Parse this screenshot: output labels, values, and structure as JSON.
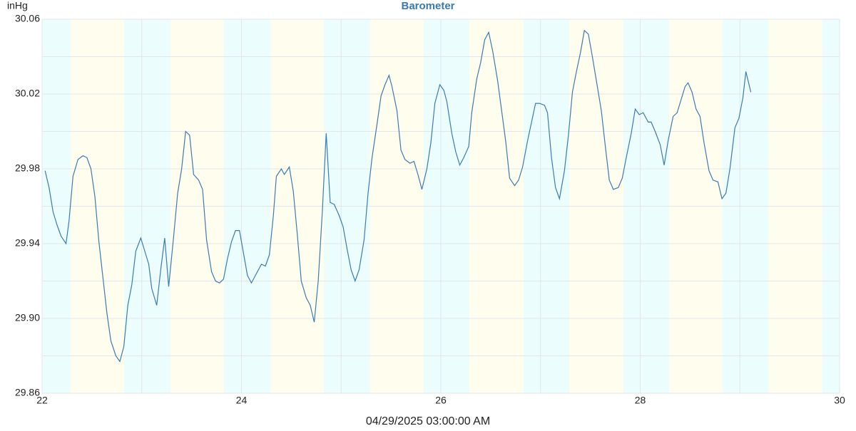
{
  "chart_data": {
    "type": "line",
    "title": "Barometer",
    "y_unit": "inHg",
    "cursor_time": "04/29/2025 03:00:00 AM",
    "xlim": [
      22,
      30
    ],
    "xticks": [
      22,
      24,
      26,
      28,
      30
    ],
    "x_gridlines": [
      23,
      25,
      27,
      29
    ],
    "ylim": [
      29.86,
      30.06
    ],
    "yticks": [
      29.86,
      {
        "value": 29.9,
        "label": "29.90"
      },
      29.94,
      29.98,
      30.02,
      30.06
    ],
    "y_gridlines": [
      29.88,
      29.92,
      29.96,
      30.0,
      30.04
    ],
    "grid": true,
    "bands": [
      {
        "x0": 22,
        "x1": 22.286,
        "color": "#ecfdfd"
      },
      {
        "x0": 22.286,
        "x1": 22.823,
        "color": "#fefdee"
      },
      {
        "x0": 22.823,
        "x1": 23.288,
        "color": "#ecfdfd"
      },
      {
        "x0": 23.288,
        "x1": 23.825,
        "color": "#fefdee"
      },
      {
        "x0": 23.825,
        "x1": 24.29,
        "color": "#ecfdfd"
      },
      {
        "x0": 24.29,
        "x1": 24.826,
        "color": "#fefdee"
      },
      {
        "x0": 24.826,
        "x1": 25.29,
        "color": "#ecfdfd"
      },
      {
        "x0": 25.29,
        "x1": 25.828,
        "color": "#fefdee"
      },
      {
        "x0": 25.828,
        "x1": 26.286,
        "color": "#ecfdfd"
      },
      {
        "x0": 26.286,
        "x1": 26.83,
        "color": "#fefdee"
      },
      {
        "x0": 26.83,
        "x1": 27.288,
        "color": "#ecfdfd"
      },
      {
        "x0": 27.288,
        "x1": 27.832,
        "color": "#fefdee"
      },
      {
        "x0": 27.832,
        "x1": 28.29,
        "color": "#ecfdfd"
      },
      {
        "x0": 28.29,
        "x1": 28.826,
        "color": "#fefdee"
      },
      {
        "x0": 28.826,
        "x1": 29.284,
        "color": "#ecfdfd"
      },
      {
        "x0": 29.284,
        "x1": 29.828,
        "color": "#fefdee"
      },
      {
        "x0": 29.828,
        "x1": 30,
        "color": "#ecfdfd"
      }
    ],
    "series": [
      {
        "color": "#3d7bb5",
        "x": [
          22.03,
          22.07,
          22.11,
          22.15,
          22.19,
          22.24,
          22.27,
          22.31,
          22.36,
          22.41,
          22.45,
          22.49,
          22.53,
          22.57,
          22.65,
          22.69,
          22.74,
          22.78,
          22.82,
          22.86,
          22.9,
          22.94,
          22.99,
          23.03,
          23.07,
          23.1,
          23.15,
          23.19,
          23.23,
          23.27,
          23.32,
          23.36,
          23.4,
          23.44,
          23.48,
          23.52,
          23.57,
          23.61,
          23.65,
          23.7,
          23.74,
          23.78,
          23.82,
          23.86,
          23.9,
          23.94,
          23.98,
          24.02,
          24.06,
          24.1,
          24.15,
          24.2,
          24.24,
          24.28,
          24.32,
          24.35,
          24.4,
          24.43,
          24.48,
          24.52,
          24.56,
          24.6,
          24.65,
          24.69,
          24.73,
          24.77,
          24.81,
          24.85,
          24.89,
          24.93,
          24.98,
          25.02,
          25.06,
          25.1,
          25.14,
          25.18,
          25.23,
          25.27,
          25.31,
          25.36,
          25.4,
          25.44,
          25.48,
          25.51,
          25.56,
          25.6,
          25.64,
          25.69,
          25.73,
          25.77,
          25.81,
          25.86,
          25.9,
          25.94,
          25.99,
          26.03,
          26.06,
          26.11,
          26.15,
          26.19,
          26.23,
          26.28,
          26.31,
          26.36,
          26.4,
          26.44,
          26.48,
          26.52,
          26.57,
          26.61,
          26.65,
          26.69,
          26.74,
          26.78,
          26.82,
          26.87,
          26.91,
          26.95,
          26.99,
          27.04,
          27.07,
          27.11,
          27.15,
          27.19,
          27.24,
          27.28,
          27.32,
          27.36,
          27.4,
          27.44,
          27.48,
          27.52,
          27.57,
          27.61,
          27.65,
          27.69,
          27.73,
          27.78,
          27.82,
          27.86,
          27.91,
          27.95,
          27.99,
          28.03,
          28.08,
          28.11,
          28.15,
          28.2,
          28.24,
          28.28,
          28.33,
          28.37,
          28.41,
          28.45,
          28.48,
          28.52,
          28.56,
          28.6,
          28.64,
          28.69,
          28.73,
          28.78,
          28.82,
          28.86,
          28.9,
          28.95,
          28.99,
          29.03,
          29.06,
          29.11
        ],
        "values": [
          29.979,
          29.97,
          29.957,
          29.95,
          29.944,
          29.94,
          29.952,
          29.976,
          29.985,
          29.987,
          29.986,
          29.98,
          29.965,
          29.941,
          29.903,
          29.888,
          29.88,
          29.877,
          29.885,
          29.907,
          29.918,
          29.936,
          29.943,
          29.936,
          29.929,
          29.916,
          29.907,
          29.926,
          29.943,
          29.917,
          29.944,
          29.967,
          29.98,
          30.0,
          29.998,
          29.977,
          29.974,
          29.969,
          29.942,
          29.925,
          29.92,
          29.919,
          29.921,
          29.932,
          29.941,
          29.947,
          29.947,
          29.935,
          29.923,
          29.919,
          29.924,
          29.929,
          29.928,
          29.934,
          29.955,
          29.976,
          29.98,
          29.977,
          29.981,
          29.968,
          29.945,
          29.92,
          29.911,
          29.907,
          29.898,
          29.92,
          29.956,
          29.999,
          29.962,
          29.961,
          29.955,
          29.949,
          29.937,
          29.926,
          29.92,
          29.926,
          29.942,
          29.967,
          29.986,
          30.004,
          30.019,
          30.025,
          30.03,
          30.024,
          30.011,
          29.99,
          29.985,
          29.983,
          29.984,
          29.977,
          29.969,
          29.98,
          29.994,
          30.015,
          30.025,
          30.022,
          30.016,
          29.999,
          29.989,
          29.982,
          29.986,
          29.992,
          30.01,
          30.028,
          30.037,
          30.049,
          30.053,
          30.043,
          30.027,
          30.011,
          29.995,
          29.975,
          29.971,
          29.974,
          29.981,
          29.995,
          30.005,
          30.015,
          30.015,
          30.014,
          30.01,
          29.986,
          29.97,
          29.964,
          29.979,
          29.998,
          30.021,
          30.032,
          30.042,
          30.054,
          30.052,
          30.04,
          30.024,
          30.011,
          29.992,
          29.974,
          29.969,
          29.97,
          29.975,
          29.986,
          29.999,
          30.012,
          30.009,
          30.01,
          30.005,
          30.005,
          30.0,
          29.993,
          29.982,
          29.995,
          30.008,
          30.01,
          30.017,
          30.024,
          30.026,
          30.021,
          30.012,
          30.008,
          29.994,
          29.979,
          29.974,
          29.973,
          29.964,
          29.967,
          29.98,
          30.002,
          30.007,
          30.018,
          30.032,
          30.021
        ]
      }
    ]
  }
}
